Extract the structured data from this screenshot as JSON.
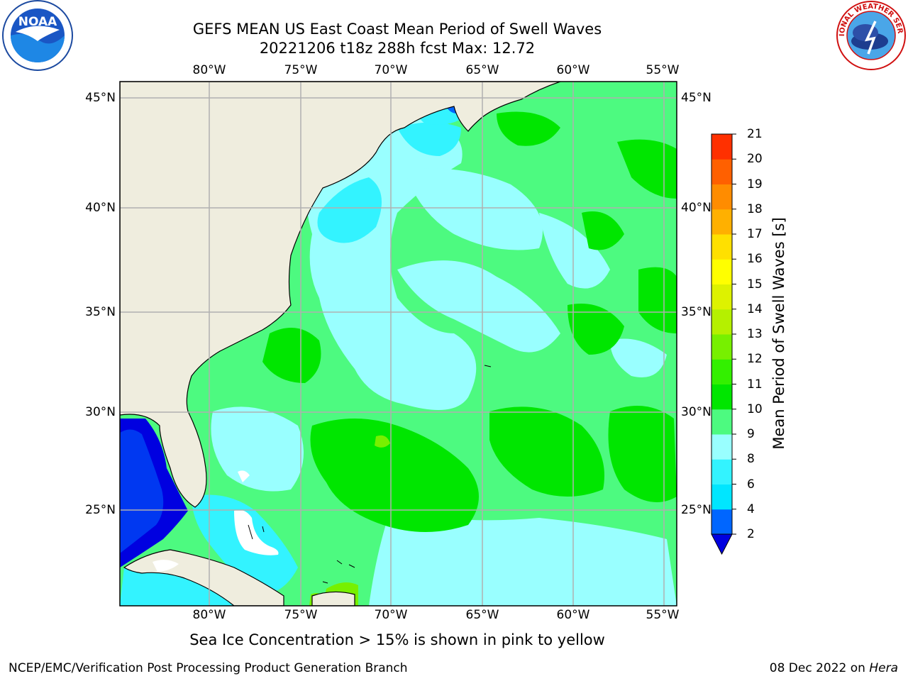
{
  "header": {
    "title_line_1": "GEFS MEAN US East Coast Mean Period of Swell Waves",
    "title_line_2": "20221206 t18z 288h fcst   Max: 12.72"
  },
  "logos": {
    "left": {
      "name": "noaa-logo",
      "text": "NOAA"
    },
    "right": {
      "name": "nws-logo",
      "text": "NATIONAL WEATHER SERVICE"
    }
  },
  "map": {
    "lon_labels": [
      "80°W",
      "75°W",
      "70°W",
      "65°W",
      "60°W",
      "55°W"
    ],
    "lat_labels_left": [
      "45°N",
      "40°N",
      "35°N",
      "30°N",
      "25°N"
    ],
    "lat_labels_right": [
      "45°N",
      "40°N",
      "35°N",
      "30°N",
      "25°N"
    ],
    "land_color": "#efedde",
    "no_data_color": "#ffffff",
    "grid_color": "#b0b0b0"
  },
  "colorbar": {
    "label": "Mean Period of Swell Waves [s]",
    "ticks": [
      "21",
      "20",
      "19",
      "18",
      "17",
      "16",
      "15",
      "14",
      "13",
      "12",
      "11",
      "10",
      "9",
      "8",
      "6",
      "4",
      "2"
    ],
    "colors": [
      "#0000e0",
      "#0066ff",
      "#00e6ff",
      "#33f3ff",
      "#99ffff",
      "#4dfa80",
      "#00e600",
      "#33f000",
      "#77f000",
      "#b5f000",
      "#ddf200",
      "#ffff00",
      "#ffe000",
      "#ffb000",
      "#ff8c00",
      "#ff6000",
      "#ff3000",
      "#ff0000"
    ]
  },
  "footer": {
    "note": "Sea Ice Concentration > 15% is shown in pink to yellow",
    "left": "NCEP/EMC/Verification Post Processing Product Generation Branch",
    "date": "08 Dec 2022 on ",
    "host": "Hera"
  }
}
